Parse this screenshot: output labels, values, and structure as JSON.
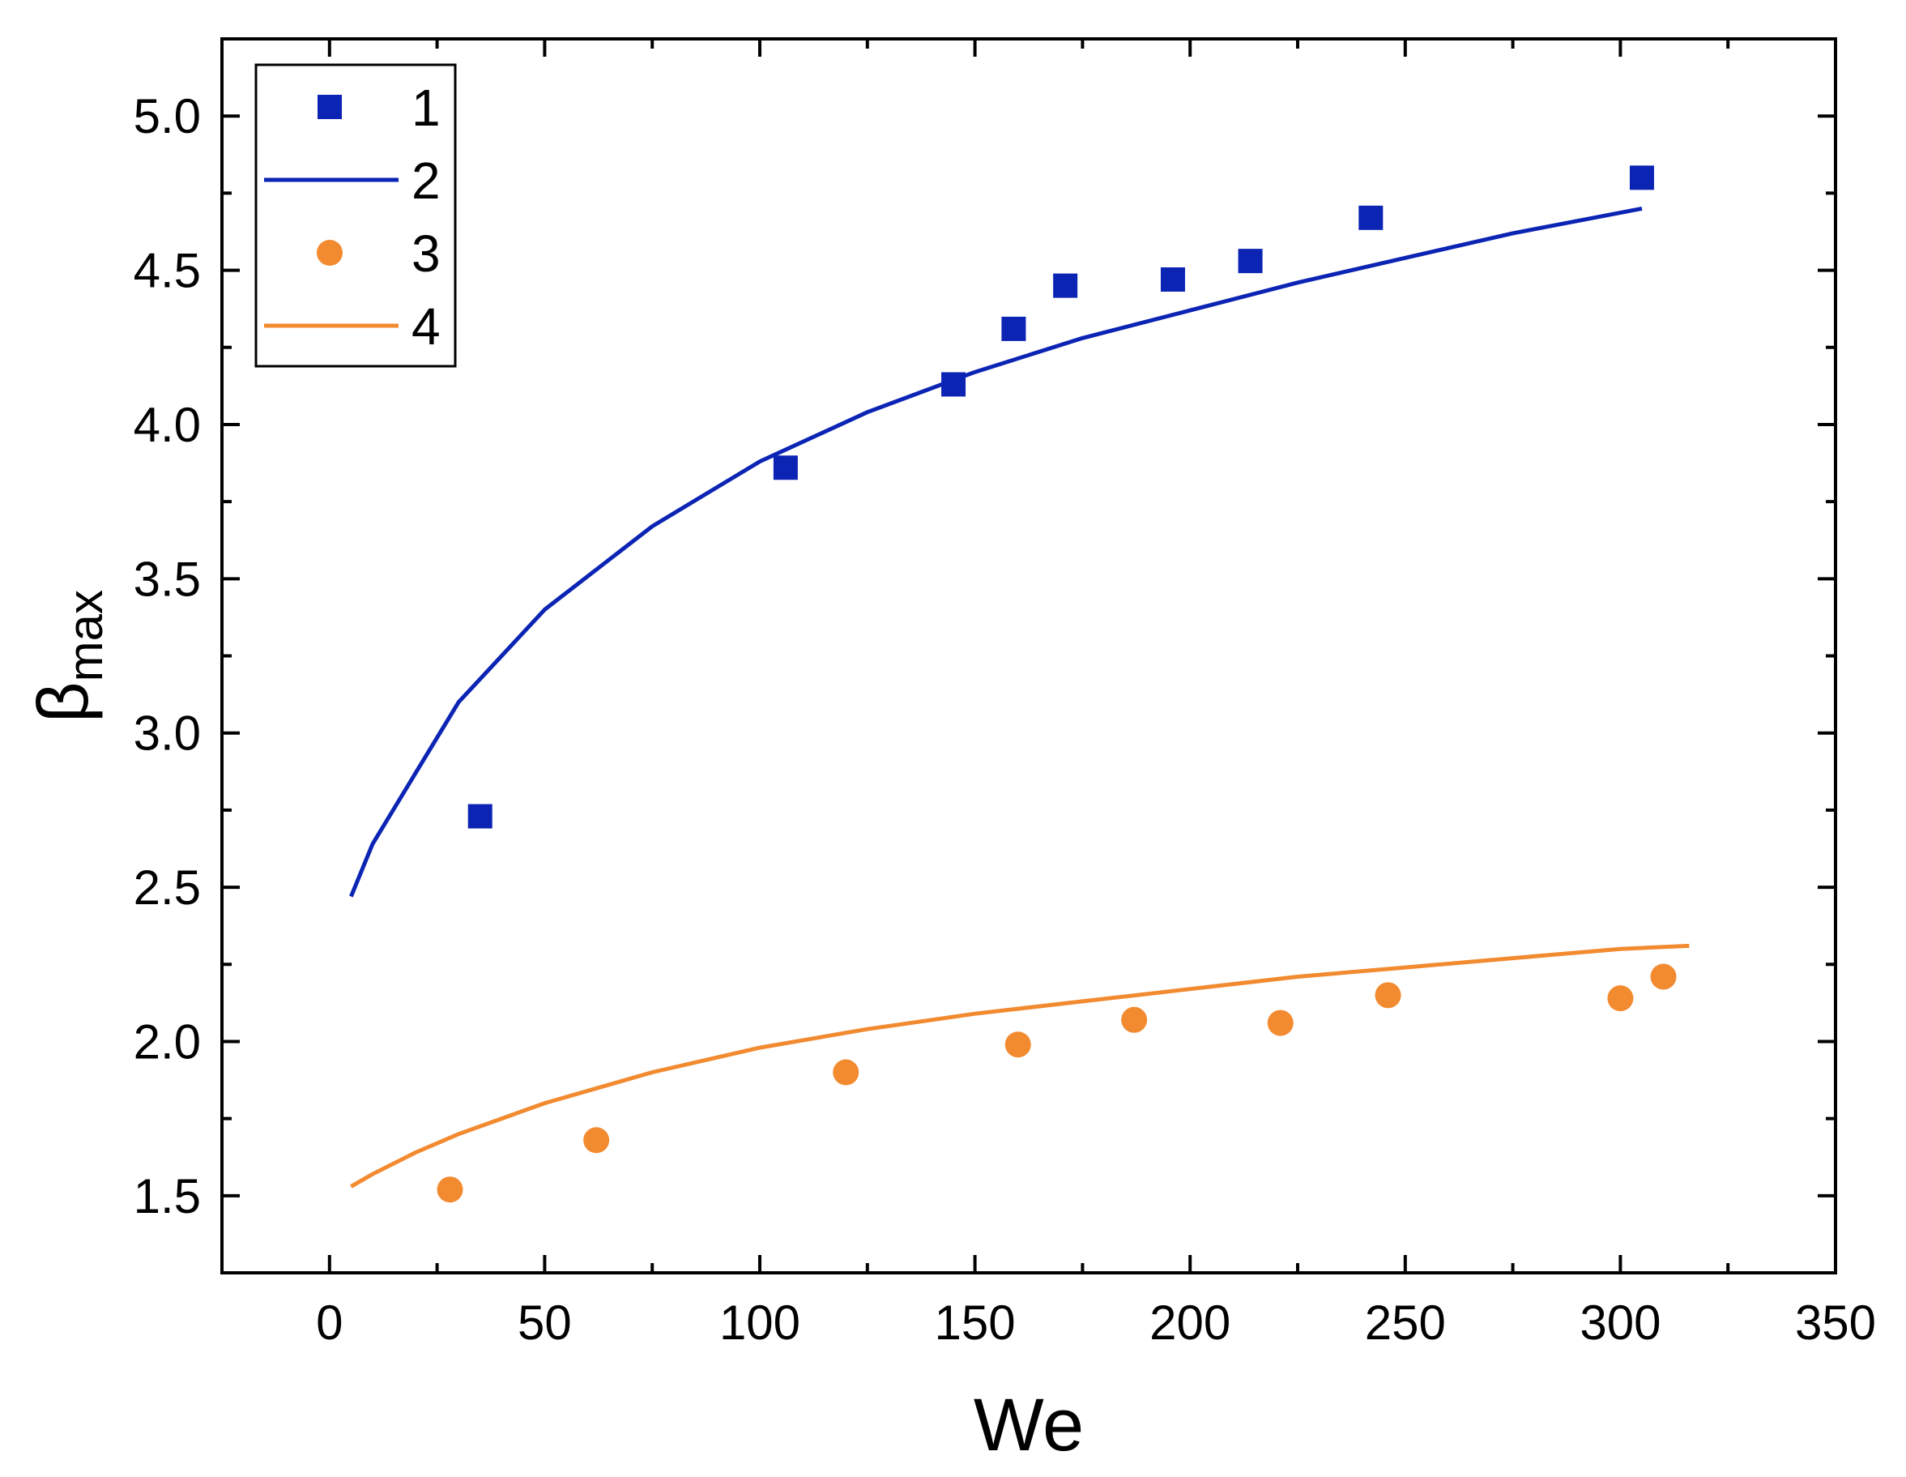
{
  "chart_data": {
    "type": "scatter",
    "title": "",
    "xlabel": "We",
    "ylabel": "β",
    "ylabel_subscript": "max",
    "xlim": [
      -25,
      350
    ],
    "ylim": [
      1.25,
      5.25
    ],
    "xticks": [
      0,
      50,
      100,
      150,
      200,
      250,
      300,
      350
    ],
    "yticks": [
      1.5,
      2.0,
      2.5,
      3.0,
      3.5,
      4.0,
      4.5,
      5.0
    ],
    "xtick_labels": [
      "0",
      "50",
      "100",
      "150",
      "200",
      "250",
      "300",
      "350"
    ],
    "ytick_labels": [
      "1.5",
      "2.0",
      "2.5",
      "3.0",
      "3.5",
      "4.0",
      "4.5",
      "5.0"
    ],
    "grid": false,
    "legend_position": "top-left",
    "series": [
      {
        "name": "1",
        "kind": "markers",
        "marker": "square",
        "color": "#0b24b4",
        "x": [
          35,
          106,
          145,
          159,
          171,
          196,
          214,
          242,
          305
        ],
        "y": [
          2.73,
          3.86,
          4.13,
          4.31,
          4.45,
          4.47,
          4.53,
          4.67,
          4.8
        ]
      },
      {
        "name": "2",
        "kind": "line",
        "color": "#0b24b4",
        "x": [
          5,
          10,
          20,
          30,
          50,
          75,
          100,
          125,
          150,
          175,
          200,
          225,
          250,
          275,
          305
        ],
        "y": [
          2.47,
          2.64,
          2.87,
          3.1,
          3.4,
          3.67,
          3.88,
          4.04,
          4.17,
          4.28,
          4.37,
          4.46,
          4.54,
          4.62,
          4.7
        ]
      },
      {
        "name": "3",
        "kind": "markers",
        "marker": "circle",
        "color": "#f28a30",
        "x": [
          28,
          62,
          120,
          160,
          187,
          221,
          246,
          300,
          310
        ],
        "y": [
          1.52,
          1.68,
          1.9,
          1.99,
          2.07,
          2.06,
          2.15,
          2.14,
          2.21
        ]
      },
      {
        "name": "4",
        "kind": "line",
        "color": "#f28a30",
        "x": [
          5,
          10,
          20,
          30,
          50,
          75,
          100,
          125,
          150,
          175,
          200,
          225,
          250,
          275,
          300,
          316
        ],
        "y": [
          1.53,
          1.57,
          1.64,
          1.7,
          1.8,
          1.9,
          1.98,
          2.04,
          2.09,
          2.13,
          2.17,
          2.21,
          2.24,
          2.27,
          2.3,
          2.31
        ]
      }
    ]
  }
}
